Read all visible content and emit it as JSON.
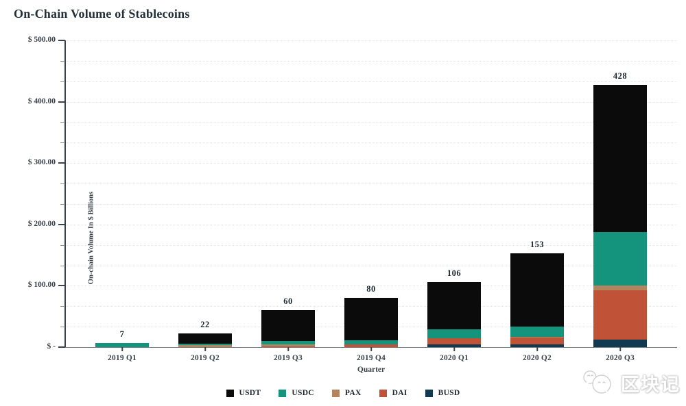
{
  "chart_data": {
    "type": "bar",
    "stacked": true,
    "title": "On-Chain Volume of Stablecoins",
    "xlabel": "Quarter",
    "ylabel": "On-chain Volume In $ Billions",
    "categories": [
      "2019 Q1",
      "2019 Q2",
      "2019 Q3",
      "2019 Q4",
      "2020 Q1",
      "2020 Q2",
      "2020 Q3"
    ],
    "series": [
      {
        "name": "USDT",
        "color": "#0b0b0b",
        "values": [
          0,
          16,
          50,
          69,
          77,
          120,
          240
        ]
      },
      {
        "name": "USDC",
        "color": "#14947c",
        "values": [
          7,
          3,
          6,
          6,
          14,
          16,
          88
        ]
      },
      {
        "name": "PAX",
        "color": "#b3855e",
        "values": [
          0,
          3,
          3,
          1,
          1,
          1,
          7
        ]
      },
      {
        "name": "DAI",
        "color": "#bf5237",
        "values": [
          0,
          0,
          1,
          4,
          9,
          11,
          81
        ]
      },
      {
        "name": "BUSD",
        "color": "#11394f",
        "values": [
          0,
          0,
          0,
          0,
          5,
          5,
          12
        ]
      }
    ],
    "stack_order_bottom_to_top": [
      "BUSD",
      "DAI",
      "PAX",
      "USDC",
      "USDT"
    ],
    "totals": [
      7,
      22,
      60,
      80,
      106,
      153,
      428
    ],
    "total_labels": [
      "7",
      "22",
      "60",
      "80",
      "106",
      "153",
      "428"
    ],
    "y_axis": {
      "max": 500,
      "major_step": 100,
      "minor_divisions": 3,
      "tick_labels": [
        "$ 500.00",
        "$ 400.00",
        "$ 300.00",
        "$ 200.00",
        "$ 100.00",
        "$ -"
      ]
    },
    "grid": "horizontal-dotted",
    "legend_position": "bottom"
  },
  "watermark": {
    "text": "区块记",
    "icon": "wechat-chat-bubbles-icon"
  }
}
